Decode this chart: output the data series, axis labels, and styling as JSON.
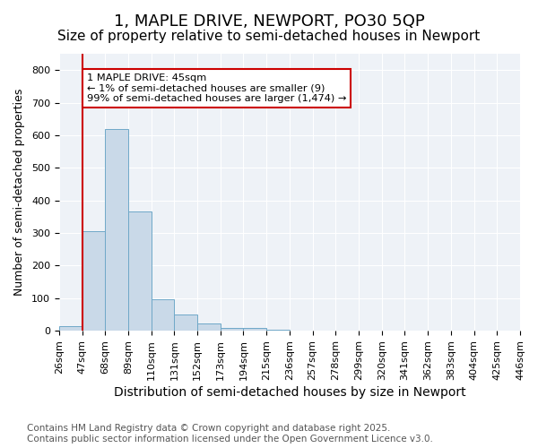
{
  "title": "1, MAPLE DRIVE, NEWPORT, PO30 5QP",
  "subtitle": "Size of property relative to semi-detached houses in Newport",
  "xlabel": "Distribution of semi-detached houses by size in Newport",
  "ylabel": "Number of semi-detached properties",
  "bar_values": [
    14,
    305,
    620,
    365,
    98,
    50,
    22,
    10,
    8,
    2,
    0,
    1,
    0,
    0,
    0,
    0,
    0,
    0,
    0,
    0
  ],
  "bin_labels": [
    "26sqm",
    "47sqm",
    "68sqm",
    "89sqm",
    "110sqm",
    "131sqm",
    "152sqm",
    "173sqm",
    "194sqm",
    "215sqm",
    "236sqm",
    "257sqm",
    "278sqm",
    "299sqm",
    "320sqm",
    "341sqm",
    "362sqm",
    "383sqm",
    "404sqm",
    "425sqm",
    "446sqm"
  ],
  "bar_color": "#c9d9e8",
  "bar_edge_color": "#6fa8c8",
  "vline_color": "#cc0000",
  "annotation_text": "1 MAPLE DRIVE: 45sqm\n← 1% of semi-detached houses are smaller (9)\n99% of semi-detached houses are larger (1,474) →",
  "annotation_box_color": "#ffffff",
  "annotation_box_edge_color": "#cc0000",
  "ylim": [
    0,
    850
  ],
  "yticks": [
    0,
    100,
    200,
    300,
    400,
    500,
    600,
    700,
    800
  ],
  "background_color": "#eef2f7",
  "footer_text": "Contains HM Land Registry data © Crown copyright and database right 2025.\nContains public sector information licensed under the Open Government Licence v3.0.",
  "title_fontsize": 13,
  "subtitle_fontsize": 11,
  "xlabel_fontsize": 10,
  "ylabel_fontsize": 9,
  "tick_fontsize": 8,
  "footer_fontsize": 7.5
}
